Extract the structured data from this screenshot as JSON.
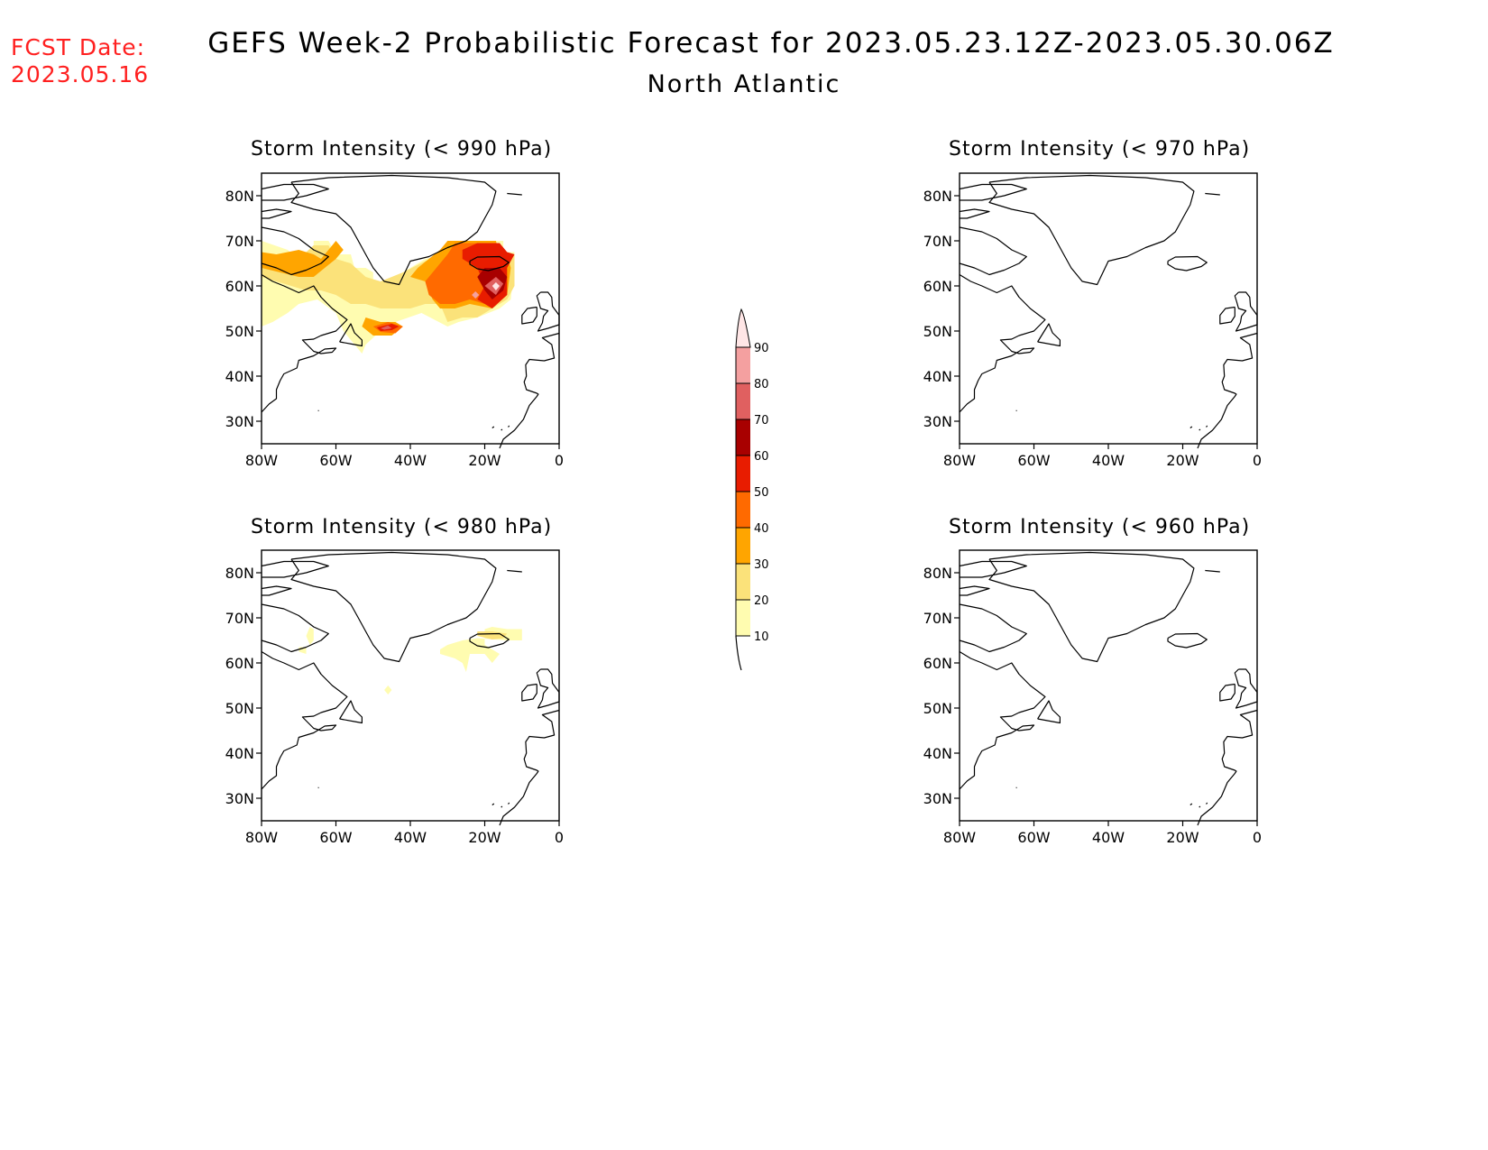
{
  "header": {
    "fcst_label": "FCST Date:",
    "fcst_date": "2023.05.16",
    "title": "GEFS Week-2 Probabilistic Forecast for 2023.05.23.12Z-2023.05.30.06Z",
    "subtitle": "North Atlantic"
  },
  "panels": [
    {
      "title": "Storm Intensity (< 990 hPa)",
      "position": "top-left"
    },
    {
      "title": "Storm Intensity (< 970 hPa)",
      "position": "top-right"
    },
    {
      "title": "Storm Intensity (< 980 hPa)",
      "position": "bottom-left"
    },
    {
      "title": "Storm Intensity (< 960 hPa)",
      "position": "bottom-right"
    }
  ],
  "axes": {
    "lat_labels": [
      "80N",
      "70N",
      "60N",
      "50N",
      "40N",
      "30N"
    ],
    "lon_labels": [
      "80W",
      "60W",
      "40W",
      "20W",
      "0"
    ]
  },
  "colorbar": {
    "levels": [
      "10",
      "20",
      "30",
      "40",
      "50",
      "60",
      "70",
      "80",
      "90"
    ],
    "colors": [
      "#fffcb0",
      "#fbe27a",
      "#ffa500",
      "#ff6a00",
      "#e81c00",
      "#a80000",
      "#e06060",
      "#f4a0a0",
      "#ffe6e6"
    ]
  }
}
